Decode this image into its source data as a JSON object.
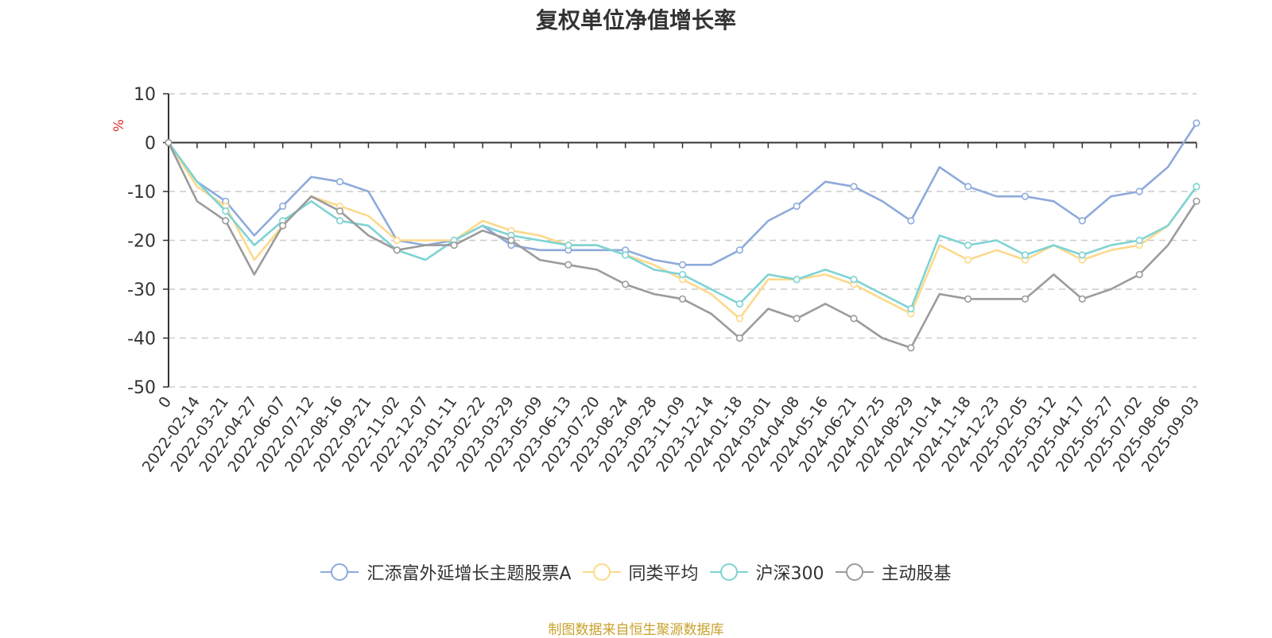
{
  "chart_data": {
    "type": "line",
    "title": "复权单位净值增长率",
    "ylabel": "%",
    "ylim": [
      -50,
      10
    ],
    "yticks": [
      10,
      0,
      -10,
      -20,
      -30,
      -40,
      -50
    ],
    "grid": true,
    "legend_position": "bottom",
    "x_labels": [
      "0",
      "2022-02-14",
      "2022-03-21",
      "2022-04-27",
      "2022-06-07",
      "2022-07-12",
      "2022-08-16",
      "2022-09-21",
      "2022-11-02",
      "2022-12-07",
      "2023-01-11",
      "2023-02-22",
      "2023-03-29",
      "2023-05-09",
      "2023-06-13",
      "2023-07-20",
      "2023-08-24",
      "2023-09-28",
      "2023-11-09",
      "2023-12-14",
      "2024-01-18",
      "2024-03-01",
      "2024-04-08",
      "2024-05-16",
      "2024-06-21",
      "2024-07-25",
      "2024-08-29",
      "2024-10-14",
      "2024-11-18",
      "2024-12-23",
      "2025-02-05",
      "2025-03-12",
      "2025-04-17",
      "2025-05-27",
      "2025-07-02",
      "2025-08-06",
      "2025-09-03"
    ],
    "series": [
      {
        "name": "汇添富外延增长主题股票A",
        "color": "#8eaadb",
        "values": [
          0,
          -8,
          -12,
          -19,
          -13,
          -7,
          -8,
          -10,
          -20,
          -21,
          -20,
          -17,
          -21,
          -22,
          -22,
          -22,
          -22,
          -24,
          -25,
          -25,
          -22,
          -16,
          -13,
          -8,
          -9,
          -12,
          -16,
          -5,
          -9,
          -11,
          -11,
          -12,
          -16,
          -11,
          -10,
          -5,
          4
        ]
      },
      {
        "name": "同类平均",
        "color": "#fcd98b",
        "values": [
          0,
          -9,
          -13,
          -24,
          -17,
          -11,
          -13,
          -15,
          -20,
          -20,
          -20,
          -16,
          -18,
          -19,
          -21,
          -21,
          -23,
          -25,
          -28,
          -31,
          -36,
          -28,
          -28,
          -27,
          -29,
          -32,
          -35,
          -21,
          -24,
          -22,
          -24,
          -21,
          -24,
          -22,
          -21,
          -17,
          -9
        ]
      },
      {
        "name": "沪深300",
        "color": "#7ed3d4",
        "values": [
          0,
          -8,
          -14,
          -21,
          -16,
          -12,
          -16,
          -17,
          -22,
          -24,
          -20,
          -17,
          -19,
          -20,
          -21,
          -21,
          -23,
          -26,
          -27,
          -30,
          -33,
          -27,
          -28,
          -26,
          -28,
          -31,
          -34,
          -19,
          -21,
          -20,
          -23,
          -21,
          -23,
          -21,
          -20,
          -17,
          -9
        ]
      },
      {
        "name": "主动股基",
        "color": "#9b9b9b",
        "values": [
          0,
          -12,
          -16,
          -27,
          -17,
          -11,
          -14,
          -19,
          -22,
          -21,
          -21,
          -18,
          -20,
          -24,
          -25,
          -26,
          -29,
          -31,
          -32,
          -35,
          -40,
          -34,
          -36,
          -33,
          -36,
          -40,
          -42,
          -31,
          -32,
          -32,
          -32,
          -27,
          -32,
          -30,
          -27,
          -21,
          -12
        ]
      }
    ]
  },
  "source_text": "制图数据来自恒生聚源数据库"
}
